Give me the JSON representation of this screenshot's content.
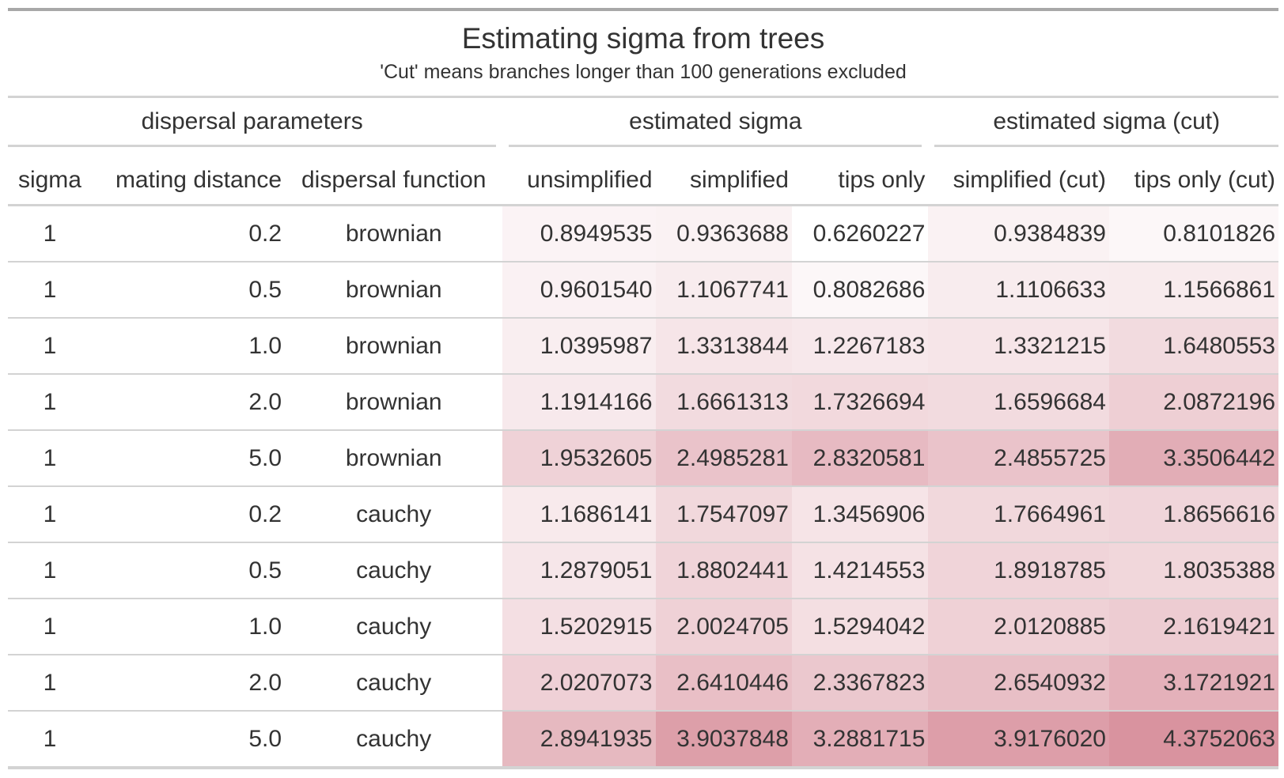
{
  "title": "Estimating sigma from trees",
  "subtitle": "'Cut' means branches longer than 100 generations excluded",
  "spanners": {
    "dispersal": "dispersal parameters",
    "estimated": "estimated sigma",
    "estimated_cut": "estimated sigma (cut)"
  },
  "columns": {
    "sigma": "sigma",
    "mating_distance": "mating distance",
    "dispersal_function": "dispersal function",
    "unsimplified": "unsimplified",
    "simplified": "simplified",
    "tips_only": "tips only",
    "simplified_cut": "simplified (cut)",
    "tips_only_cut": "tips only (cut)"
  },
  "heat_scale": {
    "low": "#ffffff",
    "high": "#d9939f",
    "min": 0.6260227,
    "max": 4.3752063
  },
  "rows": [
    {
      "sigma": "1",
      "mating_distance": "0.2",
      "dispersal_function": "brownian",
      "unsimplified": "0.8949535",
      "simplified": "0.9363688",
      "tips_only": "0.6260227",
      "simplified_cut": "0.9384839",
      "tips_only_cut": "0.8101826"
    },
    {
      "sigma": "1",
      "mating_distance": "0.5",
      "dispersal_function": "brownian",
      "unsimplified": "0.9601540",
      "simplified": "1.1067741",
      "tips_only": "0.8082686",
      "simplified_cut": "1.1106633",
      "tips_only_cut": "1.1566861"
    },
    {
      "sigma": "1",
      "mating_distance": "1.0",
      "dispersal_function": "brownian",
      "unsimplified": "1.0395987",
      "simplified": "1.3313844",
      "tips_only": "1.2267183",
      "simplified_cut": "1.3321215",
      "tips_only_cut": "1.6480553"
    },
    {
      "sigma": "1",
      "mating_distance": "2.0",
      "dispersal_function": "brownian",
      "unsimplified": "1.1914166",
      "simplified": "1.6661313",
      "tips_only": "1.7326694",
      "simplified_cut": "1.6596684",
      "tips_only_cut": "2.0872196"
    },
    {
      "sigma": "1",
      "mating_distance": "5.0",
      "dispersal_function": "brownian",
      "unsimplified": "1.9532605",
      "simplified": "2.4985281",
      "tips_only": "2.8320581",
      "simplified_cut": "2.4855725",
      "tips_only_cut": "3.3506442"
    },
    {
      "sigma": "1",
      "mating_distance": "0.2",
      "dispersal_function": "cauchy",
      "unsimplified": "1.1686141",
      "simplified": "1.7547097",
      "tips_only": "1.3456906",
      "simplified_cut": "1.7664961",
      "tips_only_cut": "1.8656616"
    },
    {
      "sigma": "1",
      "mating_distance": "0.5",
      "dispersal_function": "cauchy",
      "unsimplified": "1.2879051",
      "simplified": "1.8802441",
      "tips_only": "1.4214553",
      "simplified_cut": "1.8918785",
      "tips_only_cut": "1.8035388"
    },
    {
      "sigma": "1",
      "mating_distance": "1.0",
      "dispersal_function": "cauchy",
      "unsimplified": "1.5202915",
      "simplified": "2.0024705",
      "tips_only": "1.5294042",
      "simplified_cut": "2.0120885",
      "tips_only_cut": "2.1619421"
    },
    {
      "sigma": "1",
      "mating_distance": "2.0",
      "dispersal_function": "cauchy",
      "unsimplified": "2.0207073",
      "simplified": "2.6410446",
      "tips_only": "2.3367823",
      "simplified_cut": "2.6540932",
      "tips_only_cut": "3.1721921"
    },
    {
      "sigma": "1",
      "mating_distance": "5.0",
      "dispersal_function": "cauchy",
      "unsimplified": "2.8941935",
      "simplified": "3.9037848",
      "tips_only": "3.2881715",
      "simplified_cut": "3.9176020",
      "tips_only_cut": "4.3752063"
    }
  ]
}
